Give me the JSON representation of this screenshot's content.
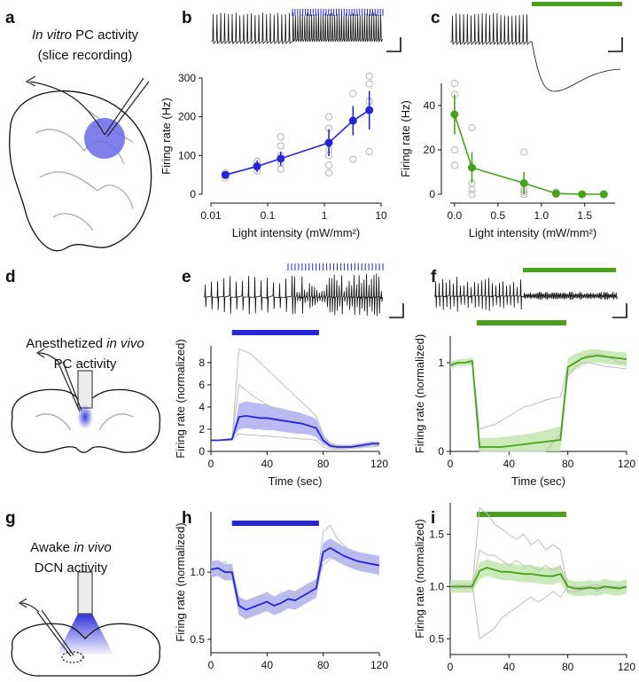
{
  "panel_labels": [
    "a",
    "b",
    "c",
    "d",
    "e",
    "f",
    "g",
    "h",
    "i"
  ],
  "schematics": [
    {
      "lines": [
        [
          {
            "text": "In vitro",
            "style": "italic"
          },
          {
            "text": " PC activity"
          }
        ],
        [
          {
            "text": "(slice recording)"
          }
        ]
      ]
    },
    {
      "lines": [
        [
          {
            "text": "Anesthetized "
          },
          {
            "text": "in vivo",
            "style": "italic"
          }
        ],
        [
          {
            "text": "PC activity"
          }
        ]
      ]
    },
    {
      "lines": [
        [
          {
            "text": "Awake "
          },
          {
            "text": "in vivo",
            "style": "italic"
          }
        ],
        [
          {
            "text": "DCN activity"
          }
        ]
      ]
    }
  ],
  "chart_data": [
    {
      "type": "scatter",
      "xlabel": "Light intensity (mW/mm²)",
      "ylabel": "Firing rate (Hz)",
      "xscale": "log",
      "xlim": [
        0.01,
        10
      ],
      "xticks": [
        0.01,
        0.1,
        1,
        10
      ],
      "ylim": [
        0,
        300
      ],
      "yticks": [
        0,
        100,
        200,
        300
      ],
      "series": [
        {
          "marker": "open",
          "color": "#b4b4b4",
          "x": [
            0.018,
            0.018,
            0.018,
            0.065,
            0.065,
            0.065,
            0.17,
            0.17,
            0.17,
            0.17,
            0.17,
            1.2,
            1.2,
            1.2,
            1.2,
            1.2,
            1.2,
            3.2,
            3.2,
            3.2,
            6.2,
            6.2,
            6.2,
            6.2
          ],
          "values": [
            42,
            48,
            55,
            60,
            70,
            85,
            65,
            80,
            100,
            125,
            148,
            55,
            75,
            100,
            115,
            170,
            200,
            90,
            190,
            260,
            110,
            240,
            285,
            305
          ]
        },
        {
          "marker": "filled",
          "color": "#2626d8",
          "x": [
            0.018,
            0.065,
            0.17,
            1.2,
            3.2,
            6.2
          ],
          "values": [
            50,
            72,
            92,
            133,
            190,
            217
          ],
          "errors": [
            8,
            15,
            18,
            35,
            38,
            50
          ]
        }
      ]
    },
    {
      "type": "scatter",
      "xlabel": "Light intensity (mW/mm²)",
      "ylabel": "Firing rate (Hz)",
      "xlim": [
        -0.05,
        1.85
      ],
      "xticks": [
        {
          "value": 0,
          "label": "0.0"
        },
        0.5,
        {
          "value": 1,
          "label": "1.0"
        },
        1.5
      ],
      "ylim": [
        0,
        50
      ],
      "yticks": [
        0,
        20,
        40
      ],
      "series": [
        {
          "marker": "open",
          "color": "#b4b4b4",
          "x": [
            0,
            0,
            0,
            0,
            0.2,
            0.2,
            0.2,
            0.2,
            0.8,
            0.8,
            0.8,
            0.8,
            1.17,
            1.17,
            1.47,
            1.72
          ],
          "values": [
            13,
            20,
            45,
            50,
            0,
            2,
            5,
            30,
            0,
            1,
            2,
            19,
            0,
            1,
            0,
            0
          ]
        },
        {
          "marker": "filled",
          "color": "#48a01c",
          "x": [
            0,
            0.2,
            0.8,
            1.17,
            1.47,
            1.72
          ],
          "values": [
            36,
            12,
            5,
            0.3,
            0,
            0
          ],
          "errors": [
            9,
            7,
            5,
            1,
            0,
            0
          ]
        }
      ]
    },
    {
      "type": "line",
      "xlabel": "Time (sec)",
      "ylabel": "Firing rate (normalized)",
      "xlim": [
        0,
        120
      ],
      "xticks": [
        0,
        40,
        80,
        120
      ],
      "ylim": [
        0,
        9.5
      ],
      "yticks": [
        0,
        2,
        4,
        6,
        8
      ],
      "x": [
        0,
        5,
        10,
        15,
        20,
        25,
        30,
        35,
        40,
        45,
        50,
        55,
        60,
        65,
        70,
        75,
        80,
        85,
        90,
        95,
        100,
        105,
        110,
        115,
        120
      ],
      "stimulus": {
        "color": "#2626d8",
        "range": [
          15,
          77
        ]
      },
      "band": {
        "color": "#a9a9f2",
        "lower": [
          1,
          1,
          1,
          1,
          2,
          2.1,
          2,
          2,
          1.9,
          1.9,
          1.8,
          1.7,
          1.6,
          1.6,
          1.5,
          1.3,
          0.6,
          0.3,
          0.25,
          0.25,
          0.25,
          0.3,
          0.4,
          0.5,
          0.5
        ],
        "upper": [
          1,
          1,
          1.1,
          1.2,
          4.3,
          4.5,
          4.4,
          4.3,
          4.2,
          4,
          3.9,
          3.7,
          3.6,
          3.4,
          3.2,
          2.9,
          1.5,
          0.8,
          0.6,
          0.6,
          0.6,
          0.7,
          0.8,
          0.9,
          0.9
        ]
      },
      "series": [
        {
          "color": "#bdbdbd",
          "values": [
            1,
            1,
            1,
            1,
            9.2,
            9,
            8.6,
            8,
            7.4,
            6.8,
            6.2,
            5.6,
            5,
            4.4,
            3.8,
            3.2,
            1.5,
            0.4,
            0.3,
            0.3,
            0.3,
            0.4,
            0.5,
            0.6,
            0.6
          ]
        },
        {
          "color": "#bdbdbd",
          "values": [
            1,
            1,
            1,
            1,
            6,
            5.5,
            5,
            4.6,
            4.2,
            3.9,
            3.6,
            3.3,
            3,
            2.7,
            2.4,
            2.2,
            1,
            0.6,
            0.5,
            0.4,
            0.5,
            0.6,
            0.6,
            0.7,
            0.7
          ]
        },
        {
          "color": "#bdbdbd",
          "values": [
            1,
            1,
            1,
            1,
            1.6,
            1.5,
            1.5,
            1.4,
            1.4,
            1.3,
            1.3,
            1.2,
            1.2,
            1.1,
            1.1,
            1,
            0.4,
            0.2,
            0.2,
            0.2,
            0.3,
            0.3,
            0.4,
            0.4,
            0.5
          ]
        },
        {
          "color": "#2626d8",
          "values": [
            1,
            1,
            1.05,
            1.1,
            3.1,
            3.2,
            3.1,
            3,
            3,
            2.9,
            2.8,
            2.7,
            2.6,
            2.5,
            2.3,
            2.1,
            1,
            0.5,
            0.4,
            0.4,
            0.4,
            0.5,
            0.6,
            0.7,
            0.7
          ]
        }
      ]
    },
    {
      "type": "line",
      "xlabel": "Time (sec)",
      "ylabel": "Firing rate (normalized)",
      "xlim": [
        0,
        120
      ],
      "xticks": [
        0,
        40,
        80,
        120
      ],
      "ylim": [
        0,
        1.3
      ],
      "yticks": [
        0,
        1
      ],
      "x": [
        0,
        5,
        10,
        15,
        20,
        25,
        30,
        35,
        40,
        45,
        50,
        55,
        60,
        65,
        70,
        75,
        80,
        85,
        90,
        95,
        100,
        105,
        110,
        115,
        120
      ],
      "stimulus": {
        "color": "#48a01c",
        "range": [
          18,
          79
        ]
      },
      "band": {
        "color": "#bfe3a8",
        "lower": [
          0.93,
          0.96,
          0.96,
          0.98,
          0,
          0,
          0,
          0,
          0,
          0,
          0,
          0,
          0,
          0,
          0,
          0,
          0.85,
          0.92,
          0.97,
          1,
          1,
          0.99,
          0.98,
          0.97,
          0.96
        ],
        "upper": [
          1.01,
          1.04,
          1.04,
          1.06,
          0.15,
          0.15,
          0.15,
          0.16,
          0.17,
          0.18,
          0.19,
          0.2,
          0.22,
          0.24,
          0.26,
          0.28,
          1.05,
          1.1,
          1.13,
          1.15,
          1.15,
          1.14,
          1.13,
          1.12,
          1.12
        ]
      },
      "series": [
        {
          "color": "#bdbdbd",
          "values": [
            1,
            1,
            1,
            1,
            0.25,
            0.28,
            0.3,
            0.35,
            0.4,
            0.45,
            0.5,
            0.52,
            0.55,
            0.58,
            0.6,
            0.62,
            0.95,
            1,
            1.05,
            1.1,
            1.1,
            1.08,
            1.05,
            1,
            1
          ]
        },
        {
          "color": "#bdbdbd",
          "values": [
            1,
            1,
            1,
            1,
            0,
            0,
            0,
            0,
            0,
            0,
            0,
            0,
            0,
            0,
            0.1,
            0.2,
            0.85,
            0.95,
            1,
            1,
            0.98,
            0.96,
            0.95,
            0.94,
            0.93
          ]
        },
        {
          "color": "#48a01c",
          "values": [
            0.97,
            1,
            1,
            1.02,
            0.05,
            0.05,
            0.05,
            0.05,
            0.06,
            0.07,
            0.08,
            0.09,
            0.1,
            0.11,
            0.12,
            0.13,
            0.95,
            1,
            1.05,
            1.07,
            1.08,
            1.07,
            1.06,
            1.05,
            1.04
          ]
        }
      ]
    },
    {
      "type": "line",
      "xlabel": "Time (sec)",
      "ylabel": "Firing rate (normalized)",
      "xlim": [
        0,
        120
      ],
      "xticks": [
        0,
        40,
        80,
        120
      ],
      "ylim": [
        0.4,
        1.45
      ],
      "yticks": [
        {
          "value": 0.5,
          "label": "0.5"
        },
        {
          "value": 1,
          "label": "1.0"
        }
      ],
      "x": [
        0,
        5,
        10,
        15,
        20,
        25,
        30,
        35,
        40,
        45,
        50,
        55,
        60,
        65,
        70,
        75,
        80,
        85,
        90,
        95,
        100,
        105,
        110,
        115,
        120
      ],
      "stimulus": {
        "color": "#2626d8",
        "range": [
          15,
          77
        ]
      },
      "band": {
        "color": "#a9a9f2",
        "lower": [
          0.96,
          0.97,
          0.94,
          0.94,
          0.68,
          0.65,
          0.67,
          0.69,
          0.71,
          0.68,
          0.7,
          0.73,
          0.72,
          0.75,
          0.78,
          0.81,
          1.08,
          1.11,
          1.08,
          1.05,
          1.03,
          1.01,
          1,
          0.99,
          0.98
        ],
        "upper": [
          1.08,
          1.09,
          1.06,
          1.06,
          0.82,
          0.79,
          0.81,
          0.83,
          0.85,
          0.82,
          0.84,
          0.87,
          0.86,
          0.89,
          0.92,
          0.95,
          1.22,
          1.25,
          1.22,
          1.19,
          1.17,
          1.15,
          1.14,
          1.13,
          1.12
        ]
      },
      "series": [
        {
          "color": "#bdbdbd",
          "values": [
            1.05,
            1,
            0.95,
            1.02,
            0.7,
            0.65,
            0.72,
            0.7,
            0.75,
            0.7,
            0.72,
            0.8,
            0.78,
            0.82,
            0.8,
            0.9,
            1.3,
            1.35,
            1.25,
            1.2,
            1.15,
            1.1,
            1.1,
            1.08,
            1.05
          ]
        },
        {
          "color": "#bdbdbd",
          "values": [
            0.98,
            1.05,
            1.08,
            0.98,
            0.8,
            0.78,
            0.8,
            0.82,
            0.85,
            0.8,
            0.85,
            0.85,
            0.82,
            0.88,
            0.92,
            0.9,
            1.05,
            1.1,
            1.1,
            1.08,
            1.05,
            1.05,
            1.02,
            1.02,
            1
          ]
        },
        {
          "color": "#2626d8",
          "values": [
            1.02,
            1.03,
            1,
            1,
            0.75,
            0.72,
            0.74,
            0.76,
            0.78,
            0.75,
            0.77,
            0.8,
            0.79,
            0.82,
            0.85,
            0.88,
            1.15,
            1.18,
            1.15,
            1.12,
            1.1,
            1.08,
            1.07,
            1.06,
            1.05
          ]
        }
      ]
    },
    {
      "type": "line",
      "xlabel": "Time (sec)",
      "ylabel": "Firing rate (normalized)",
      "xlim": [
        0,
        120
      ],
      "xticks": [
        0,
        40,
        80,
        120
      ],
      "ylim": [
        0.35,
        1.8
      ],
      "yticks": [
        {
          "value": 0.5,
          "label": "0.5"
        },
        {
          "value": 1,
          "label": "1.0"
        },
        {
          "value": 1.5,
          "label": "1.5"
        }
      ],
      "x": [
        0,
        5,
        10,
        15,
        20,
        25,
        30,
        35,
        40,
        45,
        50,
        55,
        60,
        65,
        70,
        75,
        80,
        85,
        90,
        95,
        100,
        105,
        110,
        115,
        120
      ],
      "stimulus": {
        "color": "#48a01c",
        "range": [
          18,
          79
        ]
      },
      "band": {
        "color": "#bfe3a8",
        "lower": [
          0.94,
          0.94,
          0.94,
          0.94,
          1.07,
          1.1,
          1.08,
          1.06,
          1.06,
          1.05,
          1.04,
          1.04,
          1.03,
          1.02,
          1.02,
          1.04,
          0.93,
          0.91,
          0.91,
          0.92,
          0.91,
          0.93,
          0.92,
          0.91,
          0.93
        ],
        "upper": [
          1.06,
          1.06,
          1.06,
          1.06,
          1.23,
          1.26,
          1.24,
          1.22,
          1.22,
          1.21,
          1.2,
          1.2,
          1.19,
          1.18,
          1.18,
          1.2,
          1.07,
          1.05,
          1.05,
          1.06,
          1.05,
          1.07,
          1.06,
          1.05,
          1.07
        ]
      },
      "series": [
        {
          "color": "#bdbdbd",
          "values": [
            1,
            1.02,
            0.98,
            1,
            1.75,
            1.7,
            1.6,
            1.55,
            1.5,
            1.45,
            1.5,
            1.4,
            1.45,
            1.35,
            1.4,
            1.35,
            1,
            0.98,
            1,
            1,
            0.95,
            1,
            1,
            0.98,
            1
          ]
        },
        {
          "color": "#bdbdbd",
          "values": [
            1,
            0.98,
            1,
            1.02,
            0.5,
            0.55,
            0.6,
            0.7,
            0.75,
            0.8,
            0.85,
            0.9,
            0.85,
            0.9,
            0.95,
            0.9,
            1,
            1,
            0.98,
            1,
            1.02,
            1,
            0.98,
            1,
            1
          ]
        },
        {
          "color": "#bdbdbd",
          "values": [
            1,
            1,
            1.02,
            0.98,
            1.35,
            1.3,
            1.3,
            1.25,
            1.2,
            1.25,
            1.2,
            1.2,
            1.15,
            1.2,
            1.15,
            1.2,
            0.95,
            0.95,
            0.97,
            0.98,
            1,
            0.98,
            1,
            1,
            0.98
          ]
        },
        {
          "color": "#48a01c",
          "values": [
            1,
            1,
            1,
            1,
            1.15,
            1.18,
            1.16,
            1.14,
            1.14,
            1.13,
            1.12,
            1.12,
            1.11,
            1.1,
            1.1,
            1.12,
            1,
            0.98,
            0.98,
            0.99,
            0.98,
            1,
            0.99,
            0.98,
            1
          ]
        }
      ]
    }
  ]
}
